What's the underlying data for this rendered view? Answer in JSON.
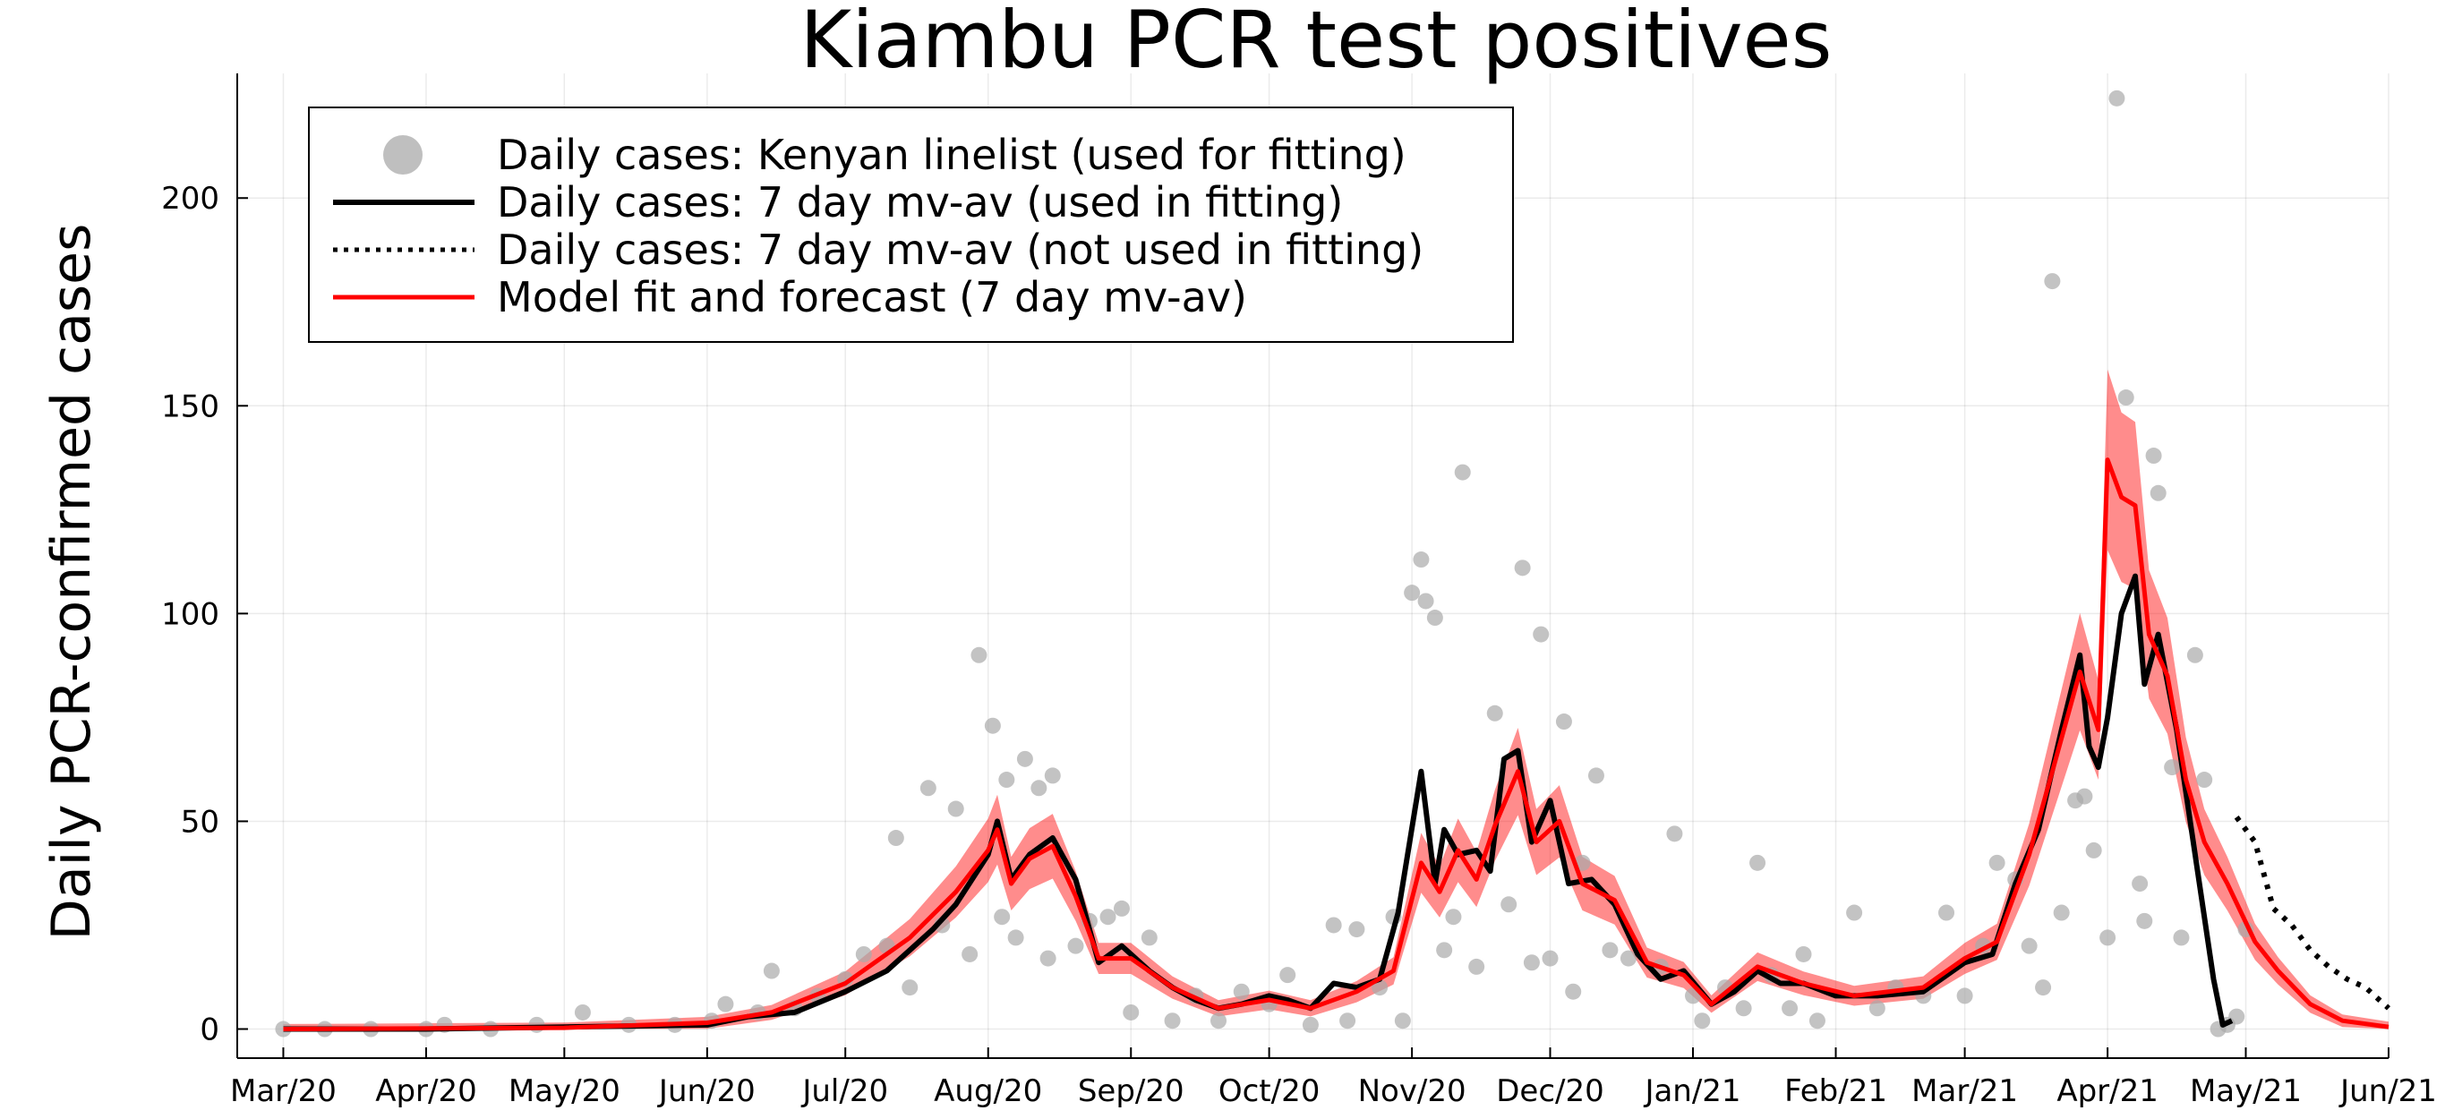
{
  "chart_data": {
    "type": "line",
    "title": "Kiambu PCR test positives",
    "xlabel": "",
    "ylabel": "Daily PCR-confirmed cases",
    "x_tick_labels": [
      "Mar/20",
      "Apr/20",
      "May/20",
      "Jun/20",
      "Jul/20",
      "Aug/20",
      "Sep/20",
      "Oct/20",
      "Nov/20",
      "Dec/20",
      "Jan/21",
      "Feb/21",
      "Mar/21",
      "Apr/21",
      "May/21",
      "Jun/21"
    ],
    "x_tick_dates": [
      "2020-03-01",
      "2020-04-01",
      "2020-05-01",
      "2020-06-01",
      "2020-07-01",
      "2020-08-01",
      "2020-09-01",
      "2020-10-01",
      "2020-11-01",
      "2020-12-01",
      "2021-01-01",
      "2021-02-01",
      "2021-03-01",
      "2021-04-01",
      "2021-05-01",
      "2021-06-01"
    ],
    "xlim": [
      "2020-02-20",
      "2021-06-01"
    ],
    "ylim": [
      -7,
      230
    ],
    "y_ticks": [
      0,
      50,
      100,
      150,
      200
    ],
    "grid": true,
    "legend_position": "top-left",
    "colors": {
      "points": "#a9a9a9",
      "observed": "#000000",
      "forecast_observed": "#000000",
      "model": "#ff0000",
      "model_band": "#ff0000"
    },
    "legend": [
      "Daily cases: Kenyan linelist (used for fitting)",
      "Daily cases: 7 day mv-av (used in fitting)",
      "Daily cases: 7 day mv-av (not used in fitting)",
      "Model fit and forecast (7 day mv-av)"
    ],
    "series": [
      {
        "name": "Daily cases: 7 day mv-av (used in fitting)",
        "style": "solid",
        "points": [
          [
            "2020-03-01",
            0
          ],
          [
            "2020-04-01",
            0
          ],
          [
            "2020-05-01",
            0.5
          ],
          [
            "2020-06-01",
            1
          ],
          [
            "2020-06-10",
            3
          ],
          [
            "2020-06-20",
            4
          ],
          [
            "2020-07-01",
            9
          ],
          [
            "2020-07-10",
            14
          ],
          [
            "2020-07-20",
            24
          ],
          [
            "2020-07-25",
            30
          ],
          [
            "2020-08-01",
            42
          ],
          [
            "2020-08-03",
            50
          ],
          [
            "2020-08-06",
            36
          ],
          [
            "2020-08-10",
            42
          ],
          [
            "2020-08-15",
            46
          ],
          [
            "2020-08-20",
            36
          ],
          [
            "2020-08-25",
            16
          ],
          [
            "2020-08-30",
            20
          ],
          [
            "2020-09-05",
            14
          ],
          [
            "2020-09-10",
            10
          ],
          [
            "2020-09-15",
            7
          ],
          [
            "2020-09-20",
            5
          ],
          [
            "2020-09-25",
            6
          ],
          [
            "2020-10-01",
            8
          ],
          [
            "2020-10-05",
            7
          ],
          [
            "2020-10-10",
            5
          ],
          [
            "2020-10-15",
            11
          ],
          [
            "2020-10-20",
            10
          ],
          [
            "2020-10-25",
            12
          ],
          [
            "2020-10-29",
            28
          ],
          [
            "2020-11-03",
            62
          ],
          [
            "2020-11-06",
            35
          ],
          [
            "2020-11-08",
            48
          ],
          [
            "2020-11-11",
            42
          ],
          [
            "2020-11-15",
            43
          ],
          [
            "2020-11-18",
            38
          ],
          [
            "2020-11-21",
            65
          ],
          [
            "2020-11-24",
            67
          ],
          [
            "2020-11-27",
            45
          ],
          [
            "2020-12-01",
            55
          ],
          [
            "2020-12-05",
            35
          ],
          [
            "2020-12-10",
            36
          ],
          [
            "2020-12-15",
            30
          ],
          [
            "2020-12-20",
            18
          ],
          [
            "2020-12-25",
            12
          ],
          [
            "2020-12-30",
            14
          ],
          [
            "2021-01-05",
            6
          ],
          [
            "2021-01-10",
            9
          ],
          [
            "2021-01-15",
            14
          ],
          [
            "2021-01-20",
            11
          ],
          [
            "2021-01-25",
            11
          ],
          [
            "2021-02-01",
            8
          ],
          [
            "2021-02-10",
            8
          ],
          [
            "2021-02-20",
            9
          ],
          [
            "2021-03-01",
            16
          ],
          [
            "2021-03-07",
            18
          ],
          [
            "2021-03-12",
            35
          ],
          [
            "2021-03-17",
            48
          ],
          [
            "2021-03-22",
            72
          ],
          [
            "2021-03-26",
            90
          ],
          [
            "2021-03-28",
            68
          ],
          [
            "2021-03-30",
            63
          ],
          [
            "2021-04-01",
            75
          ],
          [
            "2021-04-04",
            100
          ],
          [
            "2021-04-07",
            109
          ],
          [
            "2021-04-09",
            83
          ],
          [
            "2021-04-12",
            95
          ],
          [
            "2021-04-16",
            72
          ],
          [
            "2021-04-20",
            42
          ],
          [
            "2021-04-24",
            12
          ],
          [
            "2021-04-26",
            1
          ],
          [
            "2021-04-28",
            2
          ]
        ]
      },
      {
        "name": "Daily cases: 7 day mv-av (not used in fitting)",
        "style": "dotted",
        "points": [
          [
            "2021-04-29",
            51
          ],
          [
            "2021-05-03",
            45
          ],
          [
            "2021-05-07",
            29
          ],
          [
            "2021-05-11",
            25
          ],
          [
            "2021-05-15",
            19
          ],
          [
            "2021-05-19",
            15
          ],
          [
            "2021-05-23",
            12
          ],
          [
            "2021-05-27",
            10
          ],
          [
            "2021-06-01",
            5
          ]
        ]
      },
      {
        "name": "Model fit and forecast (7 day mv-av)",
        "style": "solid",
        "band": true,
        "points": [
          [
            "2020-03-01",
            0
          ],
          [
            "2020-05-01",
            0.3
          ],
          [
            "2020-06-01",
            1.5
          ],
          [
            "2020-06-15",
            4
          ],
          [
            "2020-07-01",
            11
          ],
          [
            "2020-07-15",
            22
          ],
          [
            "2020-07-25",
            33
          ],
          [
            "2020-08-01",
            43
          ],
          [
            "2020-08-03",
            48
          ],
          [
            "2020-08-06",
            35
          ],
          [
            "2020-08-10",
            41
          ],
          [
            "2020-08-15",
            44
          ],
          [
            "2020-08-20",
            32
          ],
          [
            "2020-08-25",
            17
          ],
          [
            "2020-09-01",
            17
          ],
          [
            "2020-09-10",
            10
          ],
          [
            "2020-09-20",
            5
          ],
          [
            "2020-10-01",
            7
          ],
          [
            "2020-10-10",
            5
          ],
          [
            "2020-10-20",
            9
          ],
          [
            "2020-10-28",
            14
          ],
          [
            "2020-11-03",
            40
          ],
          [
            "2020-11-07",
            33
          ],
          [
            "2020-11-11",
            43
          ],
          [
            "2020-11-15",
            36
          ],
          [
            "2020-11-19",
            49
          ],
          [
            "2020-11-24",
            62
          ],
          [
            "2020-11-28",
            45
          ],
          [
            "2020-12-03",
            50
          ],
          [
            "2020-12-08",
            35
          ],
          [
            "2020-12-15",
            31
          ],
          [
            "2020-12-22",
            16
          ],
          [
            "2020-12-30",
            13
          ],
          [
            "2021-01-05",
            6
          ],
          [
            "2021-01-15",
            15
          ],
          [
            "2021-01-25",
            11
          ],
          [
            "2021-02-05",
            8
          ],
          [
            "2021-02-20",
            10
          ],
          [
            "2021-03-01",
            17
          ],
          [
            "2021-03-08",
            21
          ],
          [
            "2021-03-15",
            42
          ],
          [
            "2021-03-22",
            70
          ],
          [
            "2021-03-26",
            86
          ],
          [
            "2021-03-30",
            72
          ],
          [
            "2021-04-01",
            137
          ],
          [
            "2021-04-04",
            128
          ],
          [
            "2021-04-07",
            126
          ],
          [
            "2021-04-10",
            95
          ],
          [
            "2021-04-14",
            85
          ],
          [
            "2021-04-18",
            60
          ],
          [
            "2021-04-22",
            45
          ],
          [
            "2021-04-27",
            35
          ],
          [
            "2021-05-03",
            21
          ],
          [
            "2021-05-08",
            14
          ],
          [
            "2021-05-15",
            6
          ],
          [
            "2021-05-22",
            2
          ],
          [
            "2021-06-01",
            0.5
          ]
        ]
      },
      {
        "name": "Daily cases: Kenyan linelist (used for fitting)",
        "style": "points",
        "points": [
          [
            "2020-03-01",
            0
          ],
          [
            "2020-03-10",
            0
          ],
          [
            "2020-03-20",
            0
          ],
          [
            "2020-04-01",
            0
          ],
          [
            "2020-04-05",
            1
          ],
          [
            "2020-04-15",
            0
          ],
          [
            "2020-04-25",
            1
          ],
          [
            "2020-05-05",
            4
          ],
          [
            "2020-05-15",
            1
          ],
          [
            "2020-05-25",
            1
          ],
          [
            "2020-06-02",
            2
          ],
          [
            "2020-06-05",
            6
          ],
          [
            "2020-06-12",
            4
          ],
          [
            "2020-06-15",
            14
          ],
          [
            "2020-06-20",
            5
          ],
          [
            "2020-06-25",
            8
          ],
          [
            "2020-07-01",
            12
          ],
          [
            "2020-07-05",
            18
          ],
          [
            "2020-07-10",
            20
          ],
          [
            "2020-07-12",
            46
          ],
          [
            "2020-07-15",
            10
          ],
          [
            "2020-07-19",
            58
          ],
          [
            "2020-07-22",
            25
          ],
          [
            "2020-07-25",
            53
          ],
          [
            "2020-07-28",
            18
          ],
          [
            "2020-07-30",
            90
          ],
          [
            "2020-08-02",
            73
          ],
          [
            "2020-08-04",
            27
          ],
          [
            "2020-08-05",
            60
          ],
          [
            "2020-08-07",
            22
          ],
          [
            "2020-08-09",
            65
          ],
          [
            "2020-08-12",
            58
          ],
          [
            "2020-08-14",
            17
          ],
          [
            "2020-08-15",
            61
          ],
          [
            "2020-08-20",
            20
          ],
          [
            "2020-08-23",
            26
          ],
          [
            "2020-08-27",
            27
          ],
          [
            "2020-08-30",
            29
          ],
          [
            "2020-09-01",
            4
          ],
          [
            "2020-09-05",
            22
          ],
          [
            "2020-09-10",
            2
          ],
          [
            "2020-09-15",
            8
          ],
          [
            "2020-09-20",
            2
          ],
          [
            "2020-09-25",
            9
          ],
          [
            "2020-10-01",
            6
          ],
          [
            "2020-10-05",
            13
          ],
          [
            "2020-10-10",
            1
          ],
          [
            "2020-10-15",
            25
          ],
          [
            "2020-10-18",
            2
          ],
          [
            "2020-10-20",
            24
          ],
          [
            "2020-10-25",
            10
          ],
          [
            "2020-10-28",
            27
          ],
          [
            "2020-10-30",
            2
          ],
          [
            "2020-11-01",
            105
          ],
          [
            "2020-11-03",
            113
          ],
          [
            "2020-11-04",
            103
          ],
          [
            "2020-11-06",
            99
          ],
          [
            "2020-11-08",
            19
          ],
          [
            "2020-11-10",
            27
          ],
          [
            "2020-11-12",
            134
          ],
          [
            "2020-11-15",
            15
          ],
          [
            "2020-11-19",
            76
          ],
          [
            "2020-11-22",
            30
          ],
          [
            "2020-11-25",
            111
          ],
          [
            "2020-11-27",
            16
          ],
          [
            "2020-11-29",
            95
          ],
          [
            "2020-12-01",
            17
          ],
          [
            "2020-12-04",
            74
          ],
          [
            "2020-12-06",
            9
          ],
          [
            "2020-12-08",
            40
          ],
          [
            "2020-12-11",
            61
          ],
          [
            "2020-12-14",
            19
          ],
          [
            "2020-12-18",
            17
          ],
          [
            "2020-12-25",
            15
          ],
          [
            "2020-12-28",
            47
          ],
          [
            "2021-01-01",
            8
          ],
          [
            "2021-01-03",
            2
          ],
          [
            "2021-01-08",
            10
          ],
          [
            "2021-01-12",
            5
          ],
          [
            "2021-01-15",
            40
          ],
          [
            "2021-01-18",
            13
          ],
          [
            "2021-01-22",
            5
          ],
          [
            "2021-01-25",
            18
          ],
          [
            "2021-01-28",
            2
          ],
          [
            "2021-02-05",
            28
          ],
          [
            "2021-02-10",
            5
          ],
          [
            "2021-02-14",
            10
          ],
          [
            "2021-02-20",
            8
          ],
          [
            "2021-02-25",
            28
          ],
          [
            "2021-03-01",
            8
          ],
          [
            "2021-03-05",
            20
          ],
          [
            "2021-03-08",
            40
          ],
          [
            "2021-03-12",
            36
          ],
          [
            "2021-03-15",
            20
          ],
          [
            "2021-03-18",
            10
          ],
          [
            "2021-03-20",
            180
          ],
          [
            "2021-03-22",
            28
          ],
          [
            "2021-03-25",
            55
          ],
          [
            "2021-03-27",
            56
          ],
          [
            "2021-03-29",
            43
          ],
          [
            "2021-04-01",
            22
          ],
          [
            "2021-04-03",
            224
          ],
          [
            "2021-04-05",
            152
          ],
          [
            "2021-04-08",
            35
          ],
          [
            "2021-04-09",
            26
          ],
          [
            "2021-04-11",
            138
          ],
          [
            "2021-04-12",
            129
          ],
          [
            "2021-04-15",
            63
          ],
          [
            "2021-04-17",
            22
          ],
          [
            "2021-04-20",
            90
          ],
          [
            "2021-04-22",
            60
          ],
          [
            "2021-04-25",
            0
          ],
          [
            "2021-04-27",
            1
          ],
          [
            "2021-04-29",
            3
          ],
          [
            "2021-05-01",
            24
          ]
        ]
      }
    ]
  }
}
